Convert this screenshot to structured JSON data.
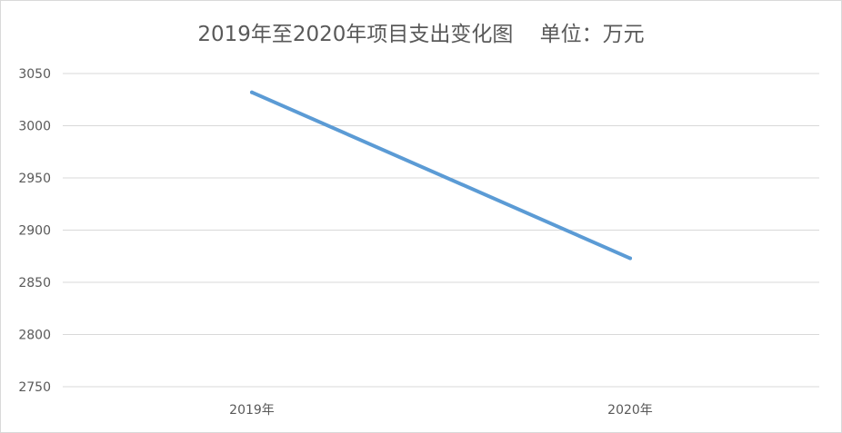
{
  "chart_data": {
    "type": "line",
    "title": "2019年至2020年项目支出变化图    单位：万元",
    "categories": [
      "2019年",
      "2020年"
    ],
    "series": [
      {
        "values": [
          3032,
          2873
        ],
        "color": "#5b9bd5"
      }
    ],
    "ylim": [
      2750,
      3050
    ],
    "yticks": [
      2750,
      2800,
      2850,
      2900,
      2950,
      3000,
      3050
    ],
    "grid": true,
    "legend": "none",
    "colors": {
      "grid": "#d9d9d9",
      "text": "#595959",
      "line": "#5b9bd5"
    }
  }
}
